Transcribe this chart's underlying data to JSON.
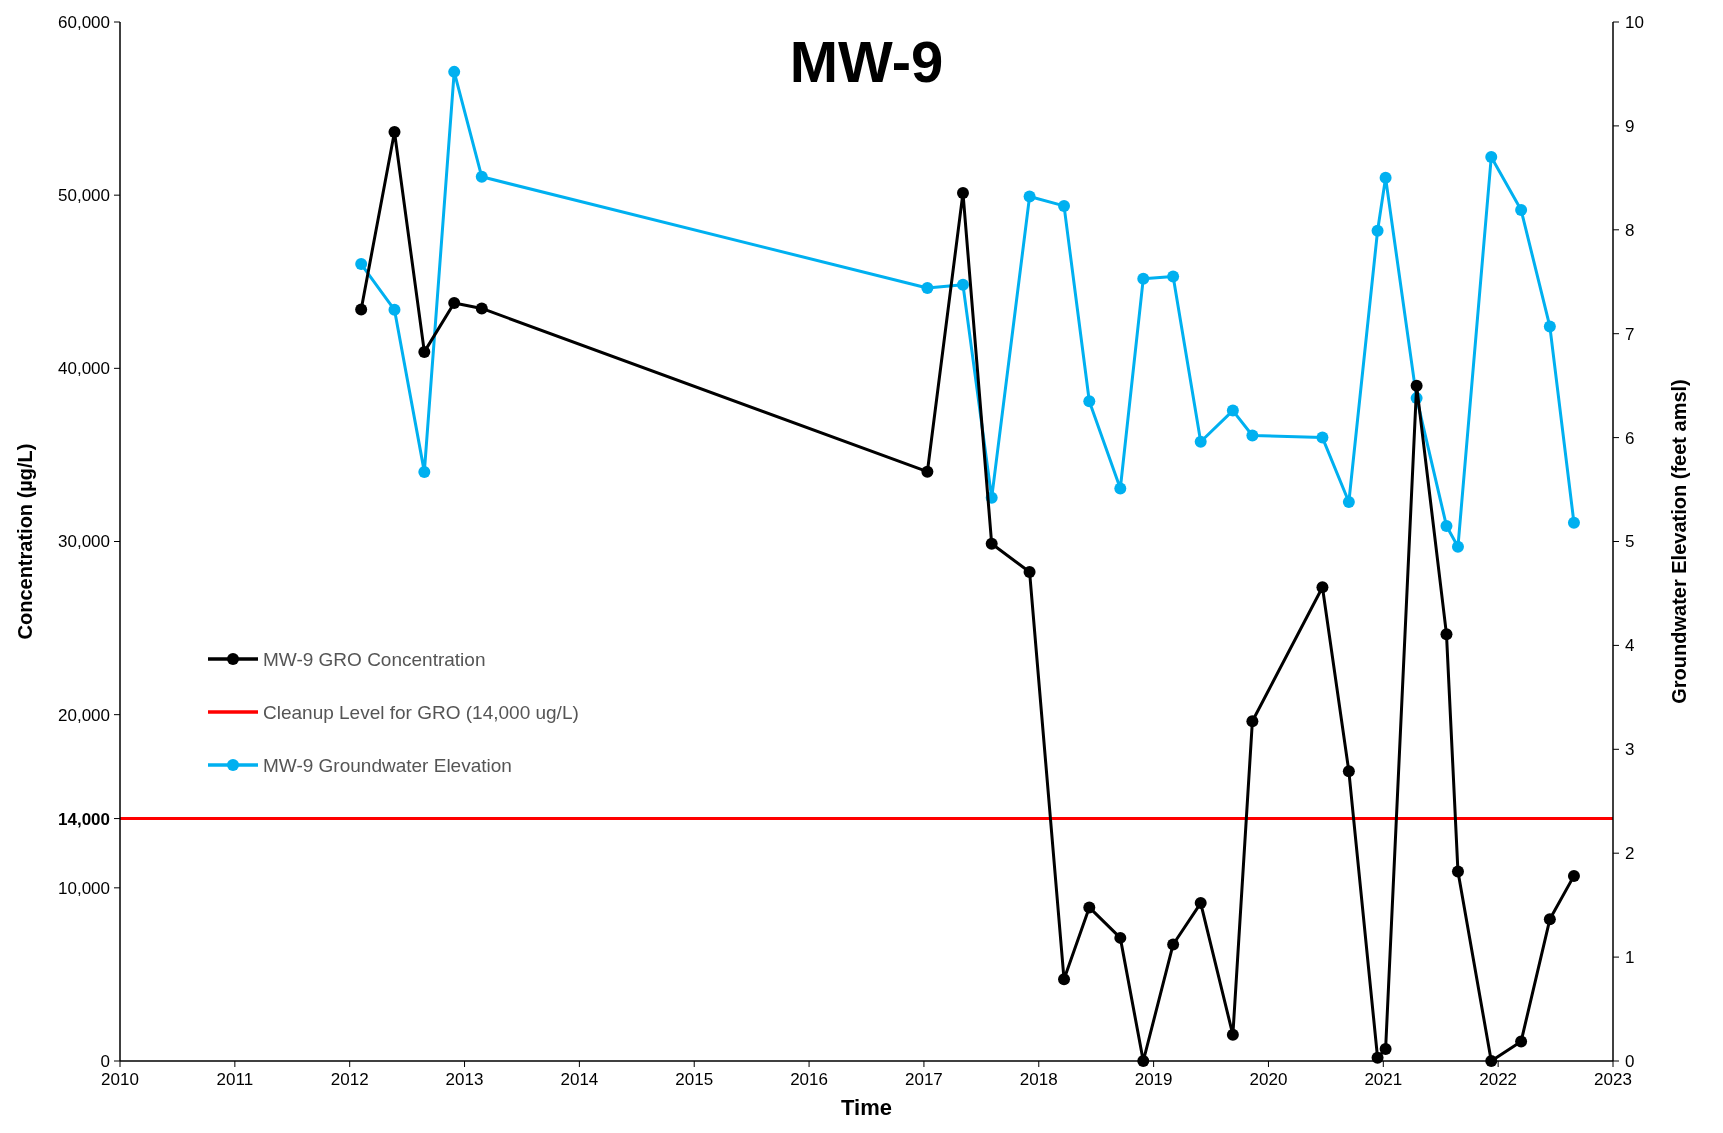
{
  "chart_data": {
    "type": "line",
    "title": "MW-9",
    "xlabel": "Time",
    "ylabel": "Concentration (µg/L)",
    "y2label": "Groundwater Elevation (feet amsl)",
    "xlim": [
      2010,
      2023
    ],
    "xticks": [
      2010,
      2011,
      2012,
      2013,
      2014,
      2015,
      2016,
      2017,
      2018,
      2019,
      2020,
      2021,
      2022,
      2023
    ],
    "ylim": [
      0,
      60000
    ],
    "yticks": [
      {
        "value": 0,
        "label": "0"
      },
      {
        "value": 10000,
        "label": "10,000"
      },
      {
        "value": 14000,
        "label": "14,000"
      },
      {
        "value": 20000,
        "label": "20,000"
      },
      {
        "value": 30000,
        "label": "30,000"
      },
      {
        "value": 40000,
        "label": "40,000"
      },
      {
        "value": 50000,
        "label": "50,000"
      },
      {
        "value": 60000,
        "label": "60,000"
      }
    ],
    "y2lim": [
      0,
      10
    ],
    "y2ticks": [
      0,
      1,
      2,
      3,
      4,
      5,
      6,
      7,
      8,
      9,
      10
    ],
    "grid": false,
    "legend": "left",
    "marker": "circle",
    "line_style": "solid",
    "ref_lines": [
      {
        "axis": "y",
        "value": 14000,
        "label": "Cleanup Level for GRO (14,000 ug/L)",
        "color": "#ff0000"
      }
    ],
    "series": [
      {
        "name": "MW-9 GRO Concentration",
        "color": "#000000",
        "x": [
          2012.1,
          2012.39,
          2012.65,
          2012.91,
          2013.15,
          2017.03,
          2017.34,
          2017.59,
          2017.92,
          2018.22,
          2018.44,
          2018.71,
          2018.91,
          2019.17,
          2019.41,
          2019.69,
          2019.86,
          2020.47,
          2020.7,
          2020.95,
          2021.02,
          2021.29,
          2021.55,
          2021.65,
          2021.94,
          2022.2,
          2022.45,
          2022.66
        ],
        "values": [
          43400,
          53650,
          40950,
          43770,
          43460,
          34030,
          50130,
          29870,
          28240,
          4720,
          8870,
          7110,
          0,
          6730,
          9120,
          1510,
          19620,
          27360,
          16730,
          190,
          690,
          38990,
          24650,
          10940,
          0,
          1130,
          8180,
          10690
        ]
      },
      {
        "name": "MW-9 Groundwater Elevation",
        "color": "#00b0f0",
        "axis": "y2",
        "x": [
          2012.1,
          2012.39,
          2012.65,
          2012.91,
          2013.15,
          2017.03,
          2017.34,
          2017.59,
          2017.92,
          2018.22,
          2018.44,
          2018.71,
          2018.91,
          2019.17,
          2019.41,
          2019.69,
          2019.86,
          2020.47,
          2020.7,
          2020.95,
          2021.02,
          2021.29,
          2021.55,
          2021.65,
          2021.94,
          2022.2,
          2022.45,
          2022.66
        ],
        "values": [
          7.67,
          7.23,
          5.67,
          9.52,
          8.51,
          7.44,
          7.47,
          5.42,
          8.32,
          8.23,
          6.35,
          5.51,
          7.53,
          7.55,
          5.96,
          6.26,
          6.02,
          6.0,
          5.38,
          7.99,
          8.5,
          6.38,
          5.15,
          4.95,
          8.7,
          8.19,
          7.07,
          5.18
        ]
      }
    ]
  }
}
